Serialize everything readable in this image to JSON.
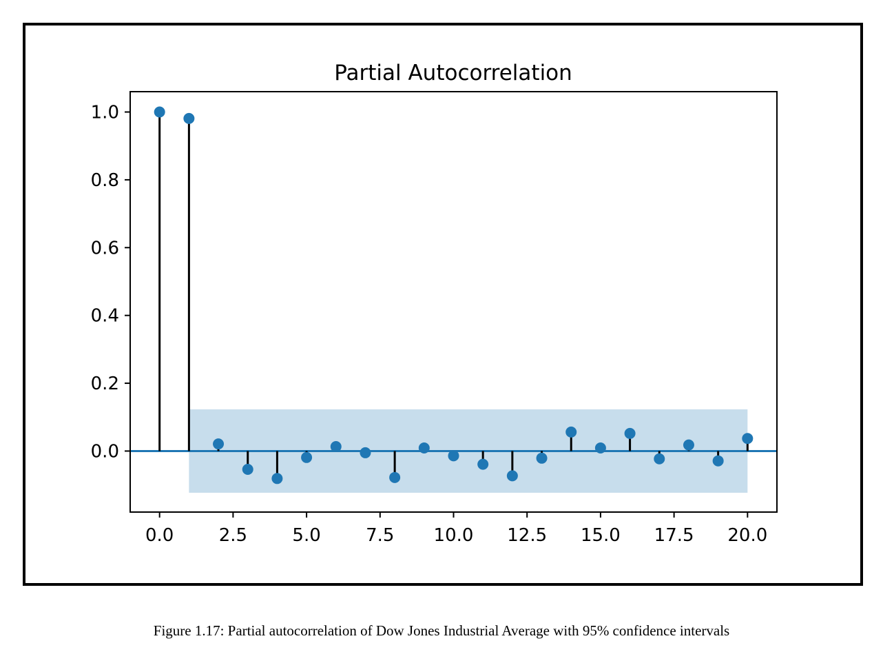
{
  "chart_data": {
    "type": "stem",
    "title": "Partial Autocorrelation",
    "xlabel": "",
    "ylabel": "",
    "xlim": [
      -1,
      21
    ],
    "ylim": [
      -0.18,
      1.06
    ],
    "xticks": [
      0.0,
      2.5,
      5.0,
      7.5,
      10.0,
      12.5,
      15.0,
      17.5,
      20.0
    ],
    "xtick_labels": [
      "0.0",
      "2.5",
      "5.0",
      "7.5",
      "10.0",
      "12.5",
      "15.0",
      "17.5",
      "20.0"
    ],
    "yticks": [
      0.0,
      0.2,
      0.4,
      0.6,
      0.8,
      1.0
    ],
    "ytick_labels": [
      "0.0",
      "0.2",
      "0.4",
      "0.6",
      "0.8",
      "1.0"
    ],
    "lags": [
      0,
      1,
      2,
      3,
      4,
      5,
      6,
      7,
      8,
      9,
      10,
      11,
      12,
      13,
      14,
      15,
      16,
      17,
      18,
      19,
      20
    ],
    "values": [
      1.0,
      0.981,
      0.021,
      -0.054,
      -0.081,
      -0.019,
      0.013,
      -0.005,
      -0.078,
      0.009,
      -0.014,
      -0.039,
      -0.073,
      -0.021,
      0.056,
      0.009,
      0.052,
      -0.023,
      0.018,
      -0.029,
      0.037
    ],
    "confidence_band": {
      "x_start": 1,
      "x_end": 20,
      "lower": -0.123,
      "upper": 0.123,
      "label": "95% confidence interval"
    },
    "grid": false,
    "colors": {
      "marker": "#1f77b4",
      "stem": "#000000",
      "zero_line": "#1f77b4",
      "band": "#1f77b4"
    }
  },
  "caption": "Figure 1.17: Partial autocorrelation of Dow Jones Industrial Average with 95% confidence intervals"
}
